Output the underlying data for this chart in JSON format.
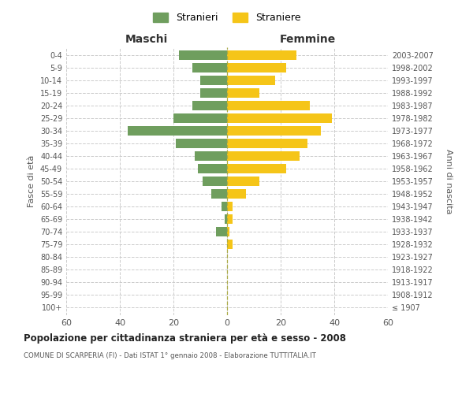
{
  "age_groups": [
    "100+",
    "95-99",
    "90-94",
    "85-89",
    "80-84",
    "75-79",
    "70-74",
    "65-69",
    "60-64",
    "55-59",
    "50-54",
    "45-49",
    "40-44",
    "35-39",
    "30-34",
    "25-29",
    "20-24",
    "15-19",
    "10-14",
    "5-9",
    "0-4"
  ],
  "birth_years": [
    "≤ 1907",
    "1908-1912",
    "1913-1917",
    "1918-1922",
    "1923-1927",
    "1928-1932",
    "1933-1937",
    "1938-1942",
    "1943-1947",
    "1948-1952",
    "1953-1957",
    "1958-1962",
    "1963-1967",
    "1968-1972",
    "1973-1977",
    "1978-1982",
    "1983-1987",
    "1988-1992",
    "1993-1997",
    "1998-2002",
    "2003-2007"
  ],
  "maschi": [
    0,
    0,
    0,
    0,
    0,
    0,
    4,
    1,
    2,
    6,
    9,
    11,
    12,
    19,
    37,
    20,
    13,
    10,
    10,
    13,
    18
  ],
  "femmine": [
    0,
    0,
    0,
    0,
    0,
    2,
    1,
    2,
    2,
    7,
    12,
    22,
    27,
    30,
    35,
    39,
    31,
    12,
    18,
    22,
    26
  ],
  "color_maschi": "#6f9e5e",
  "color_femmine": "#f5c518",
  "title": "Popolazione per cittadinanza straniera per età e sesso - 2008",
  "subtitle": "COMUNE DI SCARPERIA (FI) - Dati ISTAT 1° gennaio 2008 - Elaborazione TUTTITALIA.IT",
  "ylabel_left": "Fasce di età",
  "ylabel_right": "Anni di nascita",
  "xlabel_maschi": "Maschi",
  "xlabel_femmine": "Femmine",
  "legend_maschi": "Stranieri",
  "legend_femmine": "Straniere",
  "xlim": 60,
  "bg_color": "#ffffff",
  "grid_color": "#cccccc",
  "bar_height": 0.75
}
